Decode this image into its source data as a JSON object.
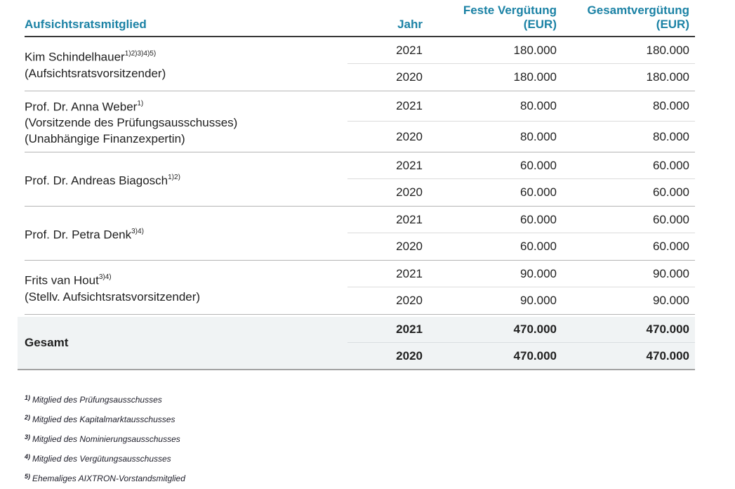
{
  "colors": {
    "accent_teal": "#1b82a5",
    "total_row_background": "#f0f3f4",
    "header_rule": "#383838",
    "group_rule": "#b5b5b5",
    "year_rule": "#dcdcdc"
  },
  "table": {
    "header": {
      "member": "Aufsichtsratsmitglied",
      "year": "Jahr",
      "fixed_line1": "Feste Vergütung",
      "fixed_line2": "(EUR)",
      "total_line1": "Gesamtvergütung",
      "total_line2": "(EUR)"
    },
    "members": [
      {
        "name": "Kim Schindelhauer",
        "sup": "1)2)3)4)5)",
        "roles": [
          "(Aufsichtsratsvorsitzender)"
        ],
        "rows": [
          {
            "year": "2021",
            "fixed": "180.000",
            "total": "180.000"
          },
          {
            "year": "2020",
            "fixed": "180.000",
            "total": "180.000"
          }
        ]
      },
      {
        "name": "Prof. Dr. Anna Weber",
        "sup": "1)",
        "roles": [
          "(Vorsitzende des Prüfungsausschusses)",
          "(Unabhängige Finanzexpertin)"
        ],
        "rows": [
          {
            "year": "2021",
            "fixed": "80.000",
            "total": "80.000"
          },
          {
            "year": "2020",
            "fixed": "80.000",
            "total": "80.000"
          }
        ]
      },
      {
        "name": "Prof. Dr. Andreas Biagosch",
        "sup": "1)2)",
        "roles": [],
        "rows": [
          {
            "year": "2021",
            "fixed": "60.000",
            "total": "60.000"
          },
          {
            "year": "2020",
            "fixed": "60.000",
            "total": "60.000"
          }
        ]
      },
      {
        "name": "Prof. Dr. Petra Denk",
        "sup": "3)4)",
        "roles": [],
        "rows": [
          {
            "year": "2021",
            "fixed": "60.000",
            "total": "60.000"
          },
          {
            "year": "2020",
            "fixed": "60.000",
            "total": "60.000"
          }
        ]
      },
      {
        "name": "Frits van Hout",
        "sup": "3)4)",
        "roles": [
          "(Stellv. Aufsichtsratsvorsitzender)"
        ],
        "rows": [
          {
            "year": "2021",
            "fixed": "90.000",
            "total": "90.000"
          },
          {
            "year": "2020",
            "fixed": "90.000",
            "total": "90.000"
          }
        ]
      }
    ],
    "total": {
      "label": "Gesamt",
      "rows": [
        {
          "year": "2021",
          "fixed": "470.000",
          "total": "470.000"
        },
        {
          "year": "2020",
          "fixed": "470.000",
          "total": "470.000"
        }
      ]
    }
  },
  "footnotes": [
    {
      "marker": "1)",
      "text": "Mitglied des Prüfungsausschusses"
    },
    {
      "marker": "2)",
      "text": "Mitglied des Kapitalmarktausschusses"
    },
    {
      "marker": "3)",
      "text": "Mitglied des Nominierungsausschusses"
    },
    {
      "marker": "4)",
      "text": "Mitglied des Vergütungsausschusses"
    },
    {
      "marker": "5)",
      "text": "Ehemaliges AIXTRON-Vorstandsmitglied"
    }
  ]
}
